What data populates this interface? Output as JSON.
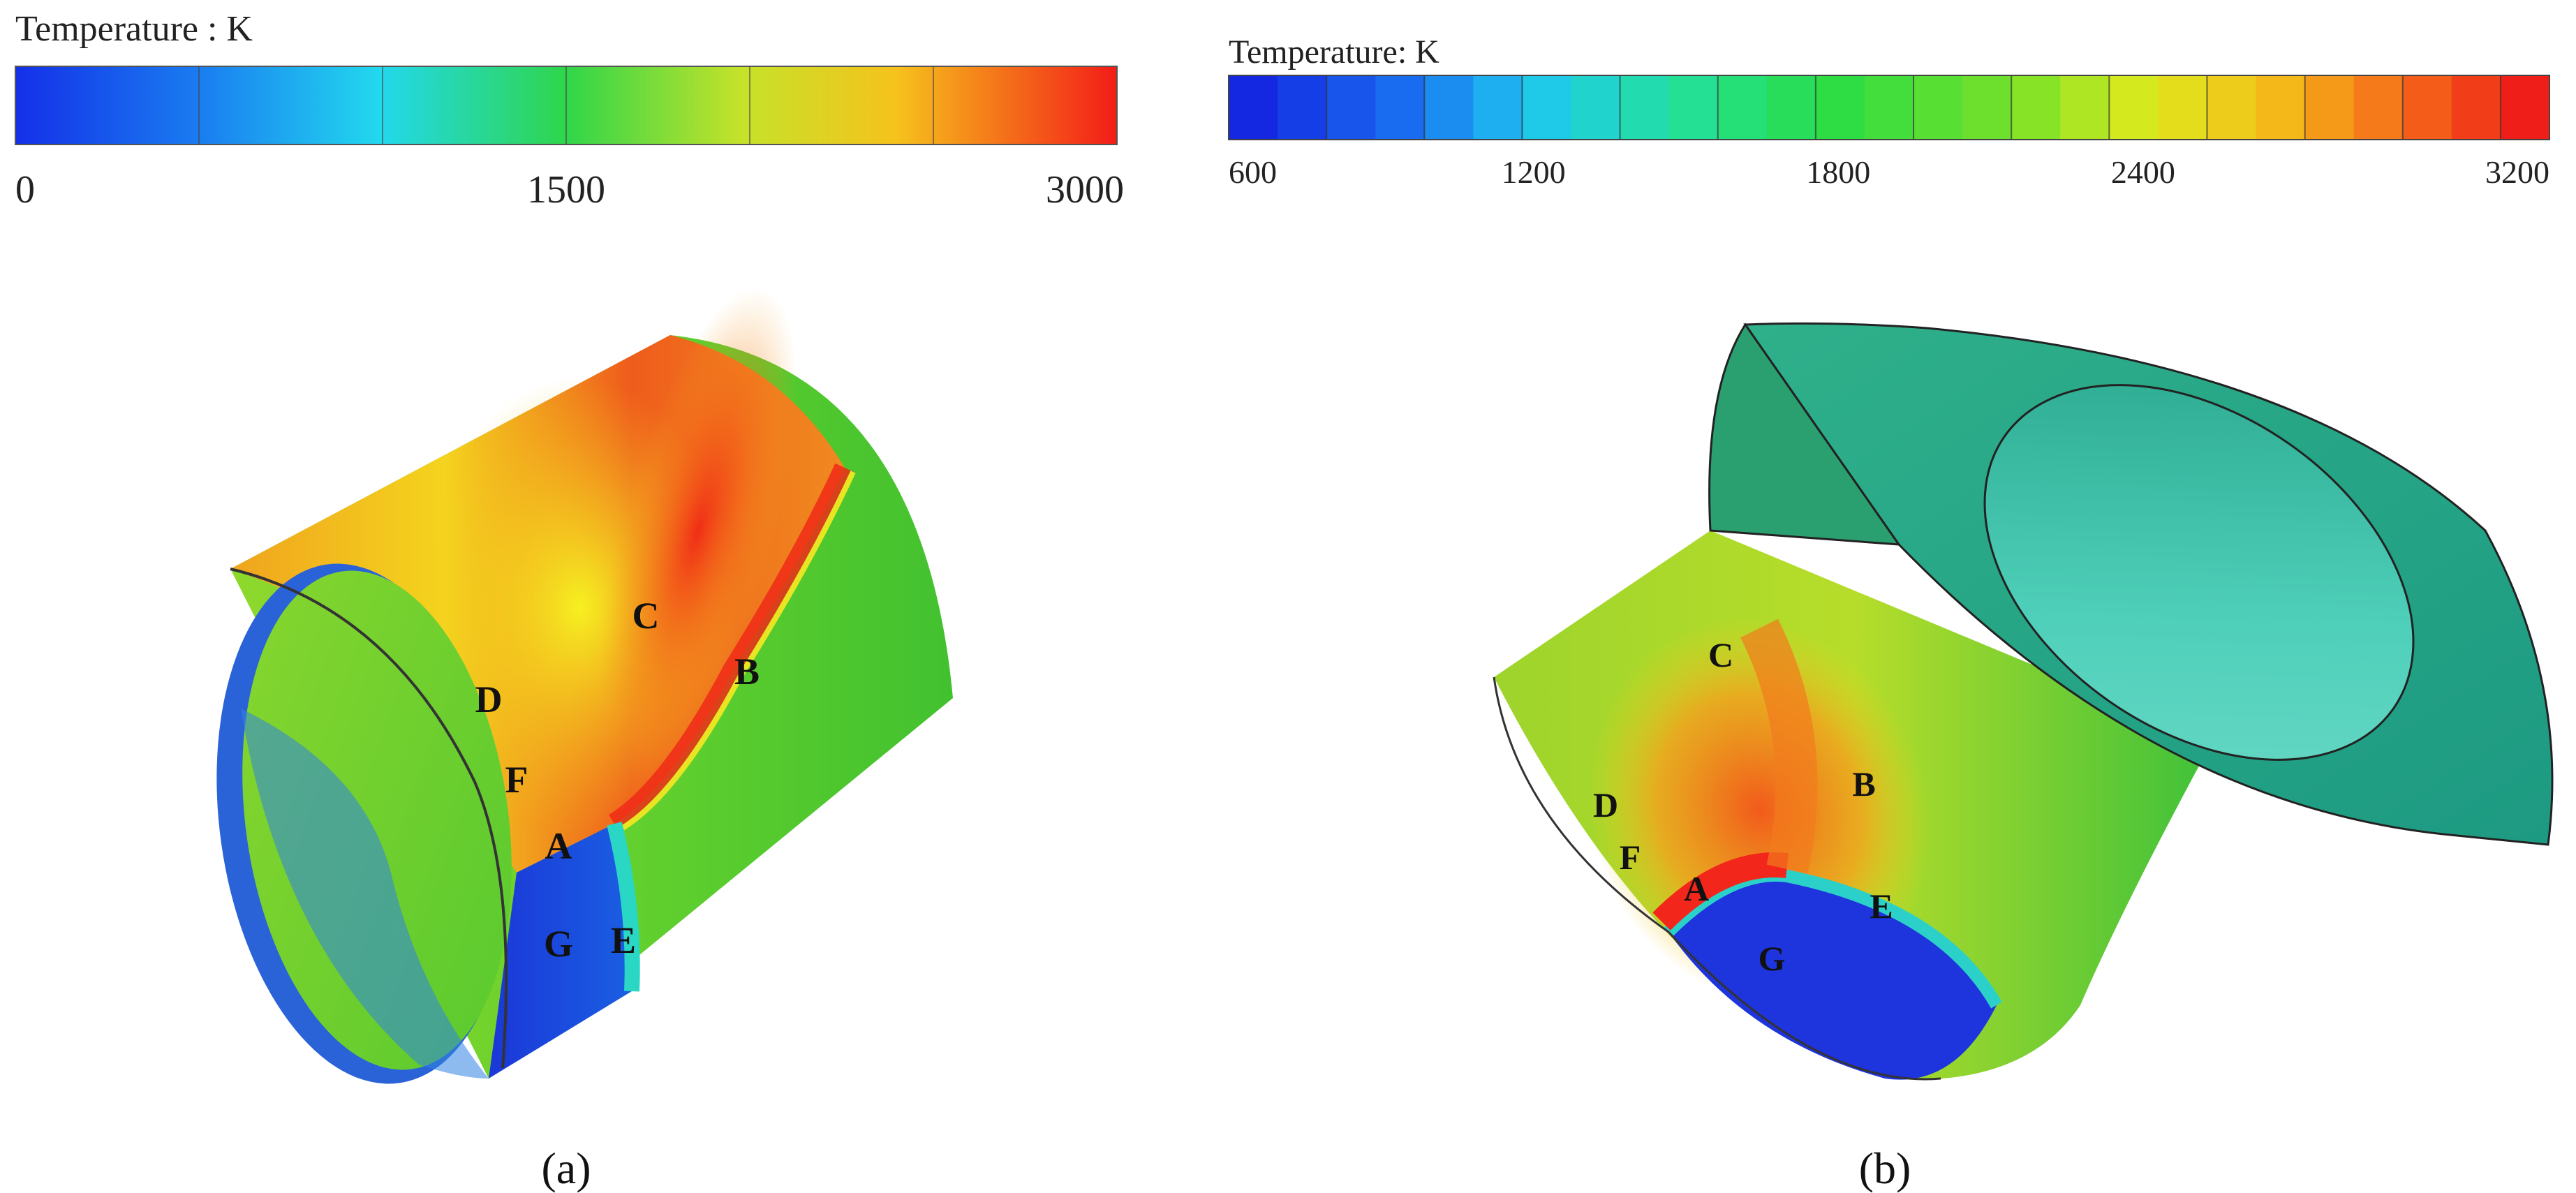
{
  "panels": [
    {
      "id": "a",
      "caption": "(a)",
      "colorbar": {
        "title": "Temperature : K",
        "ticks": [
          "0",
          "1500",
          "3000"
        ],
        "min": 0,
        "max": 3000,
        "bands": 6,
        "style": "smooth"
      },
      "points": [
        "A",
        "B",
        "C",
        "D",
        "E",
        "F",
        "G"
      ]
    },
    {
      "id": "b",
      "caption": "(b)",
      "colorbar": {
        "title": "Temperature: K",
        "ticks": [
          "600",
          "1200",
          "1800",
          "2400",
          "3200"
        ],
        "min": 600,
        "max": 3200,
        "bands": 27,
        "style": "discrete"
      },
      "points": [
        "A",
        "B",
        "C",
        "D",
        "E",
        "F",
        "G"
      ]
    }
  ],
  "colors": {
    "cold": "#1a2ee0",
    "cool": "#1fa0f0",
    "mid": "#2fd24a",
    "warm": "#f0e21e",
    "hot": "#f3351c",
    "ring": "#1f9a86",
    "ring_inner": "#3ec1a8"
  }
}
